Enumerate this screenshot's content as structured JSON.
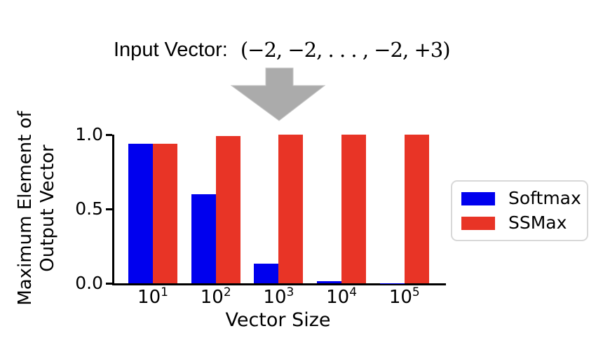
{
  "figure": {
    "title_label": "Input Vector:",
    "title_vector": "(−2, −2, . . . , −2, +3)",
    "arrow_color": "#ababab"
  },
  "chart_data": {
    "type": "bar",
    "title": "",
    "xlabel": "Vector Size",
    "ylabel": "Maximum Element of Output Vector",
    "ylabel_lines": [
      "Maximum Element of",
      "Output Vector"
    ],
    "categories": [
      "10^1",
      "10^2",
      "10^3",
      "10^4",
      "10^5"
    ],
    "series": [
      {
        "name": "Softmax",
        "color": "#0000ee",
        "values": [
          0.94,
          0.6,
          0.13,
          0.015,
          0.001
        ]
      },
      {
        "name": "SSMax",
        "color": "#e83426",
        "values": [
          0.94,
          0.99,
          1.0,
          1.0,
          1.0
        ]
      }
    ],
    "ylim": [
      0.0,
      1.0
    ],
    "yticks": [
      "0.0",
      "0.5",
      "1.0"
    ],
    "grid": false,
    "legend_position": "right",
    "axis_color": "#000000"
  }
}
